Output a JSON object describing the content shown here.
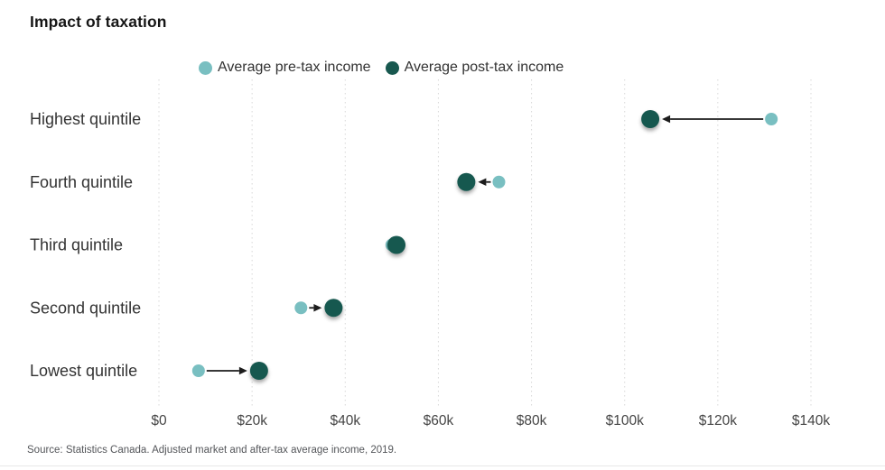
{
  "title": "Impact of taxation",
  "legend": [
    {
      "label": "Average pre-tax income",
      "color": "#79bfc1"
    },
    {
      "label": "Average post-tax income",
      "color": "#18584f"
    }
  ],
  "source": "Source: Statistics Canada. Adjusted market and after-tax average income, 2019.",
  "chart_data": {
    "type": "scatter",
    "subtype": "dumbbell-arrow",
    "title": "Impact of taxation",
    "categories": [
      "Highest quintile",
      "Fourth quintile",
      "Third quintile",
      "Second quintile",
      "Lowest quintile"
    ],
    "series": [
      {
        "name": "Average pre-tax income",
        "color": "#79bfc1",
        "values": [
          131500,
          73000,
          50000,
          30500,
          8500
        ]
      },
      {
        "name": "Average post-tax income",
        "color": "#18584f",
        "values": [
          105500,
          66000,
          51000,
          37500,
          21500
        ]
      }
    ],
    "x_axis": {
      "xlim": [
        0,
        140000
      ],
      "ticks": [
        0,
        20000,
        40000,
        60000,
        80000,
        100000,
        120000,
        140000
      ],
      "tick_labels": [
        "$0",
        "$20k",
        "$40k",
        "$60k",
        "$80k",
        "$100k",
        "$120k",
        "$140k"
      ]
    },
    "grid": "vertical-dotted",
    "gridline_color": "#d8d8d8",
    "arrow_color": "#1c1c1c",
    "legend_position": "top-center",
    "text_colors": {
      "category": "#333333",
      "tick": "#454545"
    }
  }
}
